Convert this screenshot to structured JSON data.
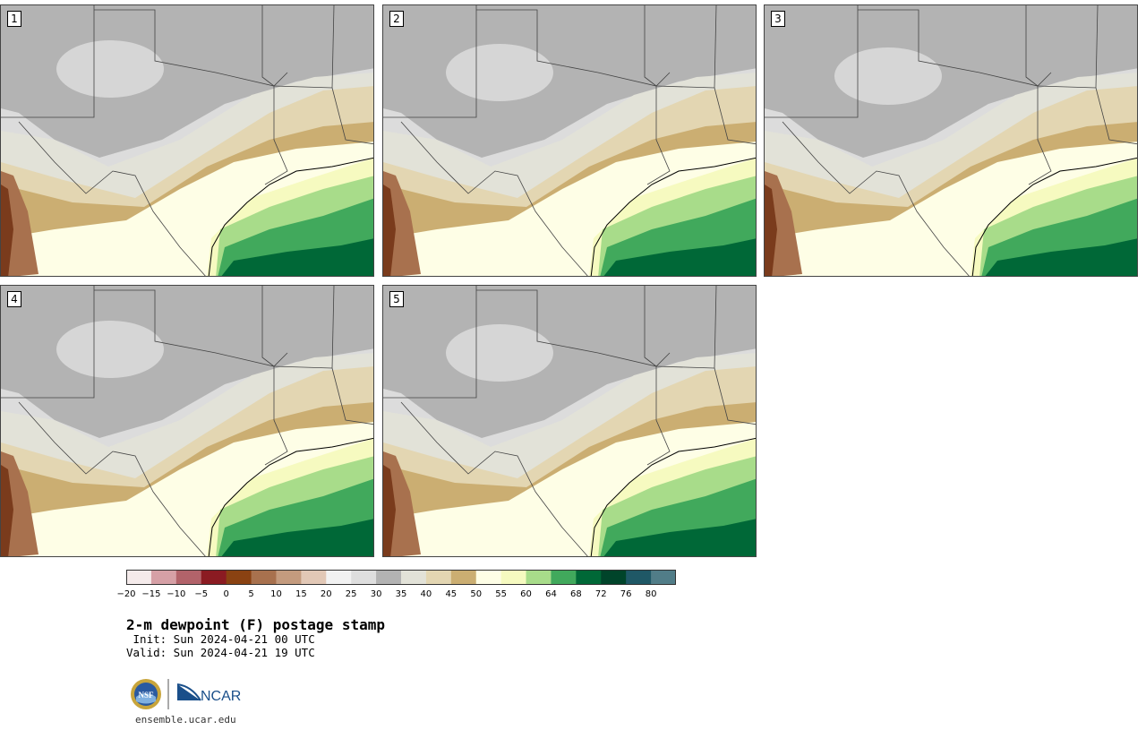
{
  "title": "2-m dewpoint (F) postage stamp",
  "init": " Init: Sun 2024-04-21 00 UTC",
  "valid": "Valid: Sun 2024-04-21 19 UTC",
  "site": "ensemble.ucar.edu",
  "logos": {
    "nsf": "NSF",
    "ncar": "NCAR"
  },
  "members": [
    "1",
    "2",
    "3",
    "4",
    "5"
  ],
  "colorbar": {
    "unit": "F",
    "ticks": [
      "−20",
      "−15",
      "−10",
      "−5",
      "0",
      "5",
      "10",
      "15",
      "20",
      "25",
      "30",
      "35",
      "40",
      "45",
      "50",
      "55",
      "60",
      "64",
      "68",
      "72",
      "76",
      "80"
    ],
    "colors": [
      "#f5ebeb",
      "#d6a0a6",
      "#b2636a",
      "#8b1b22",
      "#8a4212",
      "#a8714e",
      "#c49b7e",
      "#e2c8b6",
      "#f2f2f2",
      "#dedede",
      "#b3b3b3",
      "#e2e2d8",
      "#e3d6b2",
      "#cbae72",
      "#fefee6",
      "#f6fac0",
      "#a8dc8a",
      "#41a95c",
      "#006837",
      "#00442a",
      "#1f5866",
      "#517d88"
    ]
  },
  "palette": {
    "dry_gray": "#b3b3b3",
    "light_gray": "#dcdcdc",
    "pale": "#e2e2d8",
    "tan_light": "#e3d6b2",
    "tan": "#cbae72",
    "cream": "#fefee6",
    "yellow": "#f6fac0",
    "green_light": "#a8dc8a",
    "green": "#41a95c",
    "green_dark": "#006837",
    "brown": "#a8714e"
  }
}
